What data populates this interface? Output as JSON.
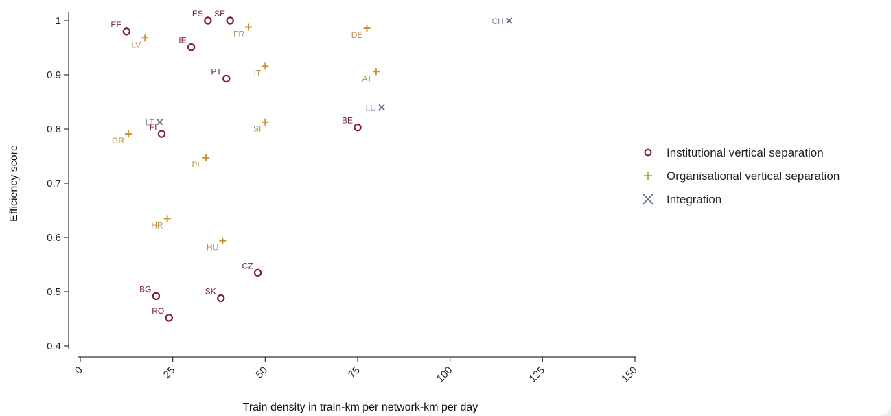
{
  "chart_data": {
    "type": "scatter",
    "title": "",
    "xlabel": "Train density in train-km per network-km per day",
    "ylabel": "Efficiency score",
    "xlim": [
      0,
      150
    ],
    "ylim": [
      0.4,
      1.0
    ],
    "x_ticks": [
      "0",
      "25",
      "50",
      "75",
      "100",
      "125",
      "150"
    ],
    "y_ticks": [
      "0.4",
      "0.5",
      "0.6",
      "0.7",
      "0.8",
      "0.9",
      "1"
    ],
    "legend_position": "right",
    "series": [
      {
        "name": "Institutional vertical separation",
        "marker": "circle",
        "color": "#7a1f3d",
        "label_color": "#7a1f3d",
        "points": [
          {
            "label": "EE",
            "x": 12.5,
            "y": 0.98
          },
          {
            "label": "ES",
            "x": 34.5,
            "y": 1.0
          },
          {
            "label": "SE",
            "x": 40.5,
            "y": 1.0
          },
          {
            "label": "IE",
            "x": 30.0,
            "y": 0.951
          },
          {
            "label": "PT",
            "x": 39.5,
            "y": 0.893
          },
          {
            "label": "FI",
            "x": 22.0,
            "y": 0.791
          },
          {
            "label": "BE",
            "x": 75.0,
            "y": 0.803
          },
          {
            "label": "CZ",
            "x": 48.0,
            "y": 0.535
          },
          {
            "label": "BG",
            "x": 20.5,
            "y": 0.492
          },
          {
            "label": "SK",
            "x": 38.0,
            "y": 0.488
          },
          {
            "label": "RO",
            "x": 24.0,
            "y": 0.452
          }
        ]
      },
      {
        "name": "Organisational vertical separation",
        "marker": "plus",
        "color": "#c9922e",
        "label_color": "#b9904a",
        "points": [
          {
            "label": "LV",
            "x": 17.5,
            "y": 0.968
          },
          {
            "label": "FR",
            "x": 45.5,
            "y": 0.988
          },
          {
            "label": "DE",
            "x": 77.5,
            "y": 0.986
          },
          {
            "label": "IT",
            "x": 50.0,
            "y": 0.916
          },
          {
            "label": "AT",
            "x": 80.0,
            "y": 0.906
          },
          {
            "label": "SI",
            "x": 50.0,
            "y": 0.813
          },
          {
            "label": "GR",
            "x": 13.0,
            "y": 0.791
          },
          {
            "label": "PL",
            "x": 34.0,
            "y": 0.747
          },
          {
            "label": "HR",
            "x": 23.5,
            "y": 0.635
          },
          {
            "label": "HU",
            "x": 38.5,
            "y": 0.594
          }
        ]
      },
      {
        "name": "Integration",
        "marker": "cross",
        "color": "#5f6f8a",
        "label_color": "#7d8699",
        "points": [
          {
            "label": "CH",
            "x": 116.0,
            "y": 1.0
          },
          {
            "label": "LU",
            "x": 81.5,
            "y": 0.84
          },
          {
            "label": "LT",
            "x": 21.5,
            "y": 0.813
          }
        ]
      }
    ]
  }
}
